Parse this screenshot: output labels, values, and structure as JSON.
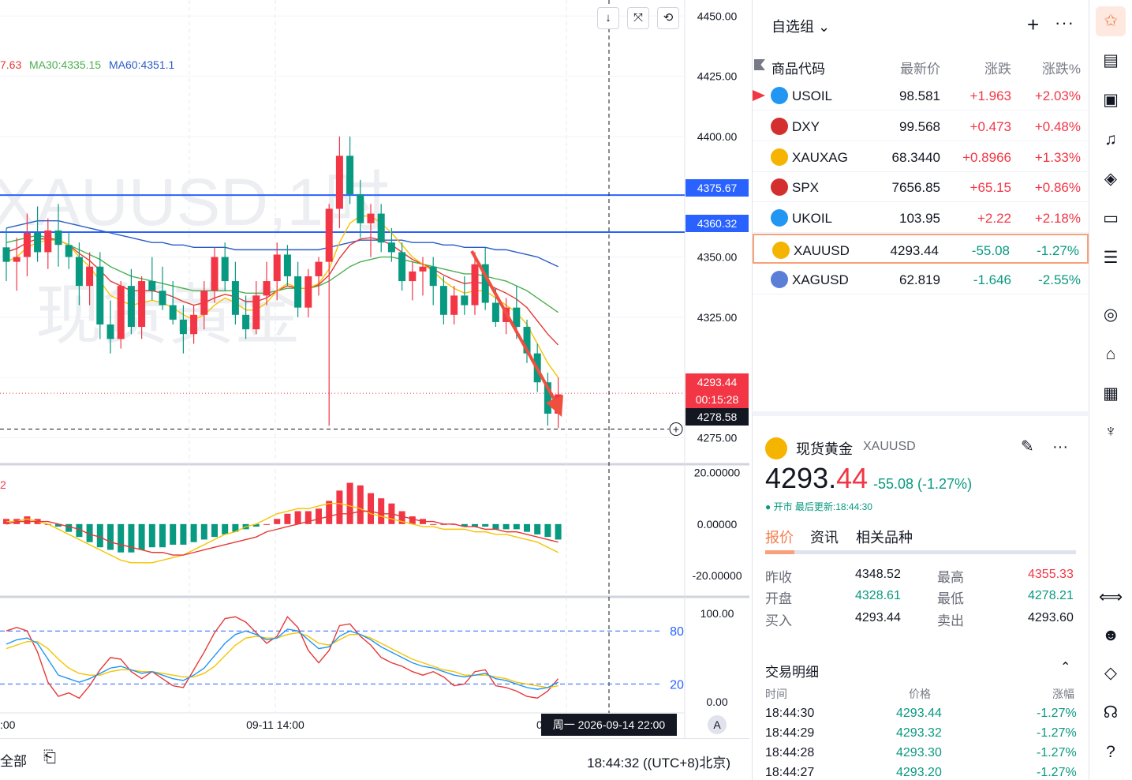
{
  "chart": {
    "watermark_symbol": "XAUUSD,1时",
    "watermark_name": "现货黄金",
    "ma_legend": {
      "ma_partial": "7.63",
      "ma30": "MA30:4335.15",
      "ma60": "MA60:4351.1"
    },
    "macd_label": "2",
    "price_ticks": [
      "4450.00",
      "4425.00",
      "4400.00",
      "4350.00",
      "4325.00",
      "4300.00",
      "4275.00"
    ],
    "macd_ticks": [
      "20.00000",
      "0.00000",
      "-20.00000"
    ],
    "kdj_ticks": [
      "100.00",
      "0.00"
    ],
    "kdj_levels": [
      "80",
      "20"
    ],
    "time_ticks": [
      ":00",
      "09-11 14:00",
      "0"
    ],
    "tags": {
      "level1": "4375.67",
      "level2": "4360.32",
      "last_price": "4293.44",
      "countdown": "00:15:28",
      "crosshair": "4278.58"
    },
    "crosshair_date": "周一 2026-09-14  22:00",
    "auto_button": "A",
    "toolbar_icons": [
      "arrow-down-icon",
      "collapse-icon",
      "reset-icon"
    ]
  },
  "chart_data": {
    "type": "candlestick",
    "y_range": [
      4265,
      4455
    ],
    "ohlc": [
      [
        4354,
        4362,
        4340,
        4348
      ],
      [
        4348,
        4358,
        4336,
        4350
      ],
      [
        4350,
        4368,
        4342,
        4360
      ],
      [
        4360,
        4371,
        4348,
        4352
      ],
      [
        4352,
        4366,
        4345,
        4361
      ],
      [
        4361,
        4372,
        4346,
        4355
      ],
      [
        4355,
        4360,
        4345,
        4350
      ],
      [
        4350,
        4356,
        4330,
        4338
      ],
      [
        4338,
        4352,
        4330,
        4346
      ],
      [
        4346,
        4352,
        4316,
        4322
      ],
      [
        4322,
        4332,
        4310,
        4316
      ],
      [
        4316,
        4340,
        4312,
        4338
      ],
      [
        4338,
        4345,
        4318,
        4321
      ],
      [
        4321,
        4342,
        4316,
        4340
      ],
      [
        4340,
        4350,
        4332,
        4336
      ],
      [
        4336,
        4346,
        4328,
        4330
      ],
      [
        4330,
        4340,
        4322,
        4324
      ],
      [
        4324,
        4330,
        4310,
        4318
      ],
      [
        4318,
        4330,
        4314,
        4326
      ],
      [
        4326,
        4340,
        4320,
        4336
      ],
      [
        4336,
        4354,
        4331,
        4350
      ],
      [
        4350,
        4356,
        4336,
        4340
      ],
      [
        4340,
        4348,
        4322,
        4326
      ],
      [
        4326,
        4334,
        4316,
        4320
      ],
      [
        4320,
        4340,
        4318,
        4334
      ],
      [
        4334,
        4348,
        4330,
        4340
      ],
      [
        4340,
        4356,
        4332,
        4351
      ],
      [
        4351,
        4355,
        4338,
        4342
      ],
      [
        4342,
        4348,
        4325,
        4329
      ],
      [
        4329,
        4345,
        4325,
        4342
      ],
      [
        4342,
        4350,
        4334,
        4348
      ],
      [
        4348,
        4372,
        4280,
        4370
      ],
      [
        4370,
        4400,
        4362,
        4392
      ],
      [
        4392,
        4400,
        4372,
        4376
      ],
      [
        4376,
        4382,
        4358,
        4364
      ],
      [
        4364,
        4372,
        4350,
        4368
      ],
      [
        4368,
        4372,
        4352,
        4356
      ],
      [
        4356,
        4362,
        4348,
        4352
      ],
      [
        4352,
        4356,
        4336,
        4340
      ],
      [
        4340,
        4348,
        4332,
        4344
      ],
      [
        4344,
        4350,
        4334,
        4346
      ],
      [
        4346,
        4350,
        4330,
        4338
      ],
      [
        4338,
        4342,
        4322,
        4326
      ],
      [
        4326,
        4338,
        4322,
        4334
      ],
      [
        4334,
        4342,
        4326,
        4330
      ],
      [
        4330,
        4352,
        4326,
        4347
      ],
      [
        4347,
        4354,
        4328,
        4331
      ],
      [
        4331,
        4337,
        4321,
        4323
      ],
      [
        4323,
        4333,
        4318,
        4329
      ],
      [
        4329,
        4338,
        4316,
        4321
      ],
      [
        4321,
        4324,
        4306,
        4310
      ],
      [
        4310,
        4314,
        4294,
        4298
      ],
      [
        4298,
        4302,
        4280,
        4285
      ],
      [
        4285,
        4300,
        4279,
        4293
      ]
    ],
    "ma_fast": [
      4348,
      4350,
      4354,
      4356,
      4357,
      4357,
      4355,
      4350,
      4346,
      4340,
      4334,
      4332,
      4330,
      4331,
      4332,
      4331,
      4329,
      4326,
      4324,
      4326,
      4330,
      4333,
      4331,
      4328,
      4328,
      4331,
      4336,
      4339,
      4337,
      4337,
      4339,
      4345,
      4356,
      4364,
      4367,
      4367,
      4364,
      4360,
      4355,
      4350,
      4347,
      4344,
      4340,
      4337,
      4335,
      4336,
      4336,
      4333,
      4330,
      4327,
      4322,
      4314,
      4306,
      4300
    ],
    "ma30": [
      4356,
      4357,
      4358,
      4359,
      4358,
      4357,
      4355,
      4353,
      4351,
      4349,
      4346,
      4344,
      4342,
      4341,
      4340,
      4339,
      4338,
      4337,
      4336,
      4336,
      4336,
      4336,
      4336,
      4335,
      4335,
      4335,
      4336,
      4337,
      4337,
      4337,
      4338,
      4340,
      4343,
      4346,
      4348,
      4349,
      4350,
      4350,
      4349,
      4348,
      4347,
      4346,
      4345,
      4344,
      4343,
      4343,
      4342,
      4341,
      4340,
      4338,
      4336,
      4333,
      4330,
      4327
    ],
    "ma60": [
      4362,
      4363,
      4364,
      4365,
      4365,
      4365,
      4364,
      4363,
      4362,
      4361,
      4360,
      4359,
      4358,
      4357,
      4356,
      4356,
      4355,
      4355,
      4354,
      4354,
      4354,
      4354,
      4353,
      4353,
      4353,
      4353,
      4353,
      4353,
      4353,
      4353,
      4353,
      4354,
      4355,
      4356,
      4357,
      4357,
      4357,
      4357,
      4357,
      4356,
      4356,
      4356,
      4355,
      4355,
      4354,
      4354,
      4354,
      4353,
      4353,
      4352,
      4351,
      4350,
      4348,
      4346
    ],
    "macd_range": [
      -27,
      22
    ],
    "macd_hist": [
      2,
      2,
      3,
      2,
      0,
      -1,
      -3,
      -5,
      -7,
      -9,
      -10,
      -11,
      -11,
      -10,
      -9,
      -9,
      -8,
      -8,
      -7,
      -6,
      -5,
      -4,
      -3,
      -2,
      -1,
      0,
      2,
      4,
      5,
      5,
      6,
      9,
      13,
      16,
      15,
      12,
      10,
      8,
      5,
      3,
      2,
      0,
      0,
      0,
      -1,
      -1,
      -1,
      -2,
      -2,
      -2,
      -3,
      -4,
      -5,
      -6
    ],
    "macd_dif": [
      1,
      1,
      2,
      1,
      0,
      -2,
      -4,
      -6,
      -8,
      -10,
      -12,
      -14,
      -15,
      -15,
      -15,
      -14,
      -13,
      -12,
      -10,
      -8,
      -6,
      -4,
      -3,
      -1,
      0,
      2,
      4,
      5,
      6,
      6,
      7,
      8,
      8,
      7,
      6,
      4,
      3,
      2,
      1,
      0,
      -1,
      -1,
      -2,
      -2,
      -2,
      -3,
      -3,
      -4,
      -4,
      -5,
      -6,
      -7,
      -9,
      -11
    ],
    "macd_dea": [
      0,
      1,
      1,
      1,
      1,
      0,
      -1,
      -2,
      -4,
      -5,
      -7,
      -8,
      -9,
      -10,
      -11,
      -11,
      -12,
      -12,
      -11,
      -10,
      -9,
      -8,
      -7,
      -6,
      -5,
      -3,
      -2,
      -1,
      0,
      1,
      2,
      3,
      4,
      4,
      5,
      5,
      4,
      4,
      3,
      2,
      1,
      1,
      0,
      0,
      -1,
      -1,
      -2,
      -2,
      -3,
      -3,
      -4,
      -5,
      -6,
      -7
    ],
    "kdj_range": [
      -10,
      115
    ],
    "kdj_k": [
      65,
      70,
      72,
      66,
      48,
      30,
      26,
      22,
      26,
      32,
      38,
      40,
      36,
      32,
      34,
      30,
      26,
      24,
      30,
      38,
      52,
      66,
      76,
      80,
      76,
      70,
      72,
      82,
      80,
      70,
      60,
      62,
      74,
      80,
      76,
      70,
      62,
      56,
      50,
      44,
      40,
      38,
      34,
      30,
      28,
      30,
      32,
      26,
      24,
      20,
      16,
      14,
      16,
      22
    ],
    "kdj_d": [
      60,
      64,
      68,
      68,
      60,
      48,
      38,
      32,
      30,
      30,
      34,
      36,
      36,
      34,
      34,
      32,
      30,
      28,
      28,
      32,
      40,
      52,
      64,
      72,
      74,
      72,
      72,
      76,
      78,
      74,
      66,
      64,
      70,
      76,
      76,
      72,
      66,
      60,
      54,
      48,
      44,
      40,
      36,
      34,
      30,
      30,
      30,
      28,
      26,
      22,
      20,
      18,
      16,
      18
    ],
    "kdj_j": [
      80,
      84,
      80,
      56,
      22,
      6,
      10,
      4,
      18,
      36,
      50,
      48,
      34,
      26,
      34,
      26,
      18,
      16,
      36,
      56,
      78,
      94,
      96,
      90,
      78,
      66,
      74,
      96,
      84,
      58,
      44,
      58,
      86,
      88,
      74,
      64,
      50,
      44,
      40,
      34,
      30,
      34,
      28,
      18,
      20,
      34,
      36,
      18,
      16,
      12,
      6,
      4,
      12,
      26
    ]
  },
  "watchlist": {
    "title": "自选组",
    "headers": {
      "symbol": "商品代码",
      "last": "最新价",
      "chg": "涨跌",
      "pct": "涨跌%"
    },
    "rows": [
      {
        "symbol": "USOIL",
        "last": "98.581",
        "chg": "+1.963",
        "pct": "+2.03%",
        "icon_color": "#2196f3",
        "icon": "oil-icon"
      },
      {
        "symbol": "DXY",
        "last": "99.568",
        "chg": "+0.473",
        "pct": "+0.48%",
        "icon_color": "#d32f2f",
        "icon": "us-flag-icon"
      },
      {
        "symbol": "XAUXAG",
        "last": "68.3440",
        "chg": "+0.8966",
        "pct": "+1.33%",
        "icon_color": "#f5b400",
        "icon": "gold-silver-icon"
      },
      {
        "symbol": "SPX",
        "last": "7656.85",
        "chg": "+65.15",
        "pct": "+0.86%",
        "icon_color": "#d32f2f",
        "icon": "us-flag-icon"
      },
      {
        "symbol": "UKOIL",
        "last": "103.95",
        "chg": "+2.22",
        "pct": "+2.18%",
        "icon_color": "#2196f3",
        "icon": "oil-icon"
      },
      {
        "symbol": "XAUUSD",
        "last": "4293.44",
        "chg": "-55.08",
        "pct": "-1.27%",
        "icon_color": "#f5b400",
        "icon": "gold-icon"
      },
      {
        "symbol": "XAGUSD",
        "last": "62.819",
        "chg": "-1.646",
        "pct": "-2.55%",
        "icon_color": "#5b7fd6",
        "icon": "silver-icon"
      }
    ]
  },
  "detail": {
    "name": "现货黄金",
    "symbol": "XAUUSD",
    "price": "4293.44",
    "change": "-55.08 (-1.27%)",
    "status": "● 开市 最后更新:18:44:30",
    "tabs": [
      "报价",
      "资讯",
      "相关品种"
    ],
    "quotes": {
      "prev_close_label": "昨收",
      "prev_close": "4348.52",
      "high_label": "最高",
      "high": "4355.33",
      "open_label": "开盘",
      "open": "4328.61",
      "low_label": "最低",
      "low": "4278.21",
      "bid_label": "买入",
      "bid": "4293.44",
      "ask_label": "卖出",
      "ask": "4293.60"
    },
    "trades_title": "交易明细",
    "trades_headers": {
      "time": "时间",
      "price": "价格",
      "pct": "涨幅"
    },
    "trades": [
      {
        "time": "18:44:30",
        "price": "4293.44",
        "pct": "-1.27%"
      },
      {
        "time": "18:44:29",
        "price": "4293.32",
        "pct": "-1.27%"
      },
      {
        "time": "18:44:28",
        "price": "4293.30",
        "pct": "-1.27%"
      },
      {
        "time": "18:44:27",
        "price": "4293.20",
        "pct": "-1.27%"
      }
    ]
  },
  "statusbar": {
    "all": "全部",
    "clock": "18:44:32 ((UTC+8)北京)"
  },
  "colors": {
    "up": "#f23645",
    "down": "#089981",
    "accent": "#f57c4a",
    "level": "#2962ff"
  }
}
